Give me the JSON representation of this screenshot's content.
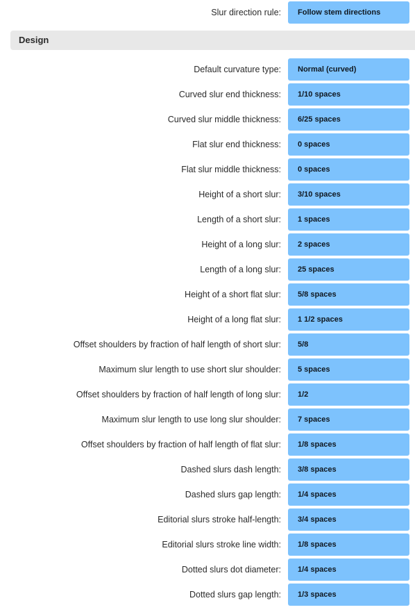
{
  "top_setting": {
    "label": "Slur direction rule:",
    "value": "Follow stem directions"
  },
  "section": {
    "title": "Design"
  },
  "settings": [
    {
      "label": "Default curvature type:",
      "value": "Normal (curved)"
    },
    {
      "label": "Curved slur end thickness:",
      "value": "1/10 spaces"
    },
    {
      "label": "Curved slur middle thickness:",
      "value": "6/25 spaces"
    },
    {
      "label": "Flat slur end thickness:",
      "value": "0 spaces"
    },
    {
      "label": "Flat slur middle thickness:",
      "value": "0 spaces"
    },
    {
      "label": "Height of a short slur:",
      "value": "3/10 spaces"
    },
    {
      "label": "Length of a short slur:",
      "value": "1 spaces"
    },
    {
      "label": "Height of a long slur:",
      "value": "2 spaces"
    },
    {
      "label": "Length of a long slur:",
      "value": "25 spaces"
    },
    {
      "label": "Height of a short flat slur:",
      "value": "5/8 spaces"
    },
    {
      "label": "Height of a long flat slur:",
      "value": "1 1/2 spaces"
    },
    {
      "label": "Offset shoulders by fraction of half length of short slur:",
      "value": "5/8"
    },
    {
      "label": "Maximum slur length to use short slur shoulder:",
      "value": "5 spaces"
    },
    {
      "label": "Offset shoulders by fraction of half length of long slur:",
      "value": "1/2"
    },
    {
      "label": "Maximum slur length to use long slur shoulder:",
      "value": "7 spaces"
    },
    {
      "label": "Offset shoulders by fraction of half length of flat slur:",
      "value": "1/8 spaces"
    },
    {
      "label": "Dashed slurs dash length:",
      "value": "3/8 spaces"
    },
    {
      "label": "Dashed slurs gap length:",
      "value": "1/4 spaces"
    },
    {
      "label": "Editorial slurs stroke half-length:",
      "value": "3/4 spaces"
    },
    {
      "label": "Editorial slurs stroke line width:",
      "value": "1/8 spaces"
    },
    {
      "label": "Dotted slurs dot diameter:",
      "value": "1/4 spaces"
    },
    {
      "label": "Dotted slurs gap length:",
      "value": "1/3 spaces"
    }
  ]
}
